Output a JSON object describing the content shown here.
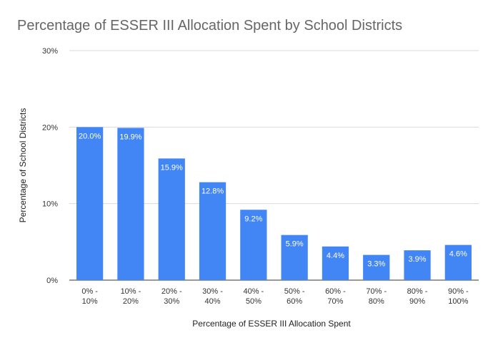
{
  "chart_data": {
    "type": "bar",
    "title": "Percentage of ESSER III Allocation Spent by School Districts",
    "xlabel": "Percentage of ESSER III Allocation Spent",
    "ylabel": "Percentage of School Districts",
    "categories": [
      [
        "0% -",
        "10%"
      ],
      [
        "10% -",
        "20%"
      ],
      [
        "20% -",
        "30%"
      ],
      [
        "30% -",
        "40%"
      ],
      [
        "40% -",
        "50%"
      ],
      [
        "50% -",
        "60%"
      ],
      [
        "60% -",
        "70%"
      ],
      [
        "70% -",
        "80%"
      ],
      [
        "80% -",
        "90%"
      ],
      [
        "90% -",
        "100%"
      ]
    ],
    "values": [
      20.0,
      19.9,
      15.9,
      12.8,
      9.2,
      5.9,
      4.4,
      3.3,
      3.9,
      4.6
    ],
    "data_labels": [
      "20.0%",
      "19.9%",
      "15.9%",
      "12.8%",
      "9.2%",
      "5.9%",
      "4.4%",
      "3.3%",
      "3.9%",
      "4.6%"
    ],
    "y_ticks": [
      0,
      10,
      20,
      30
    ],
    "y_tick_labels": [
      "0%",
      "10%",
      "20%",
      "30%"
    ],
    "ylim": [
      0,
      30
    ],
    "grid": true,
    "legend": "none",
    "bar_color": "#4285f4"
  }
}
